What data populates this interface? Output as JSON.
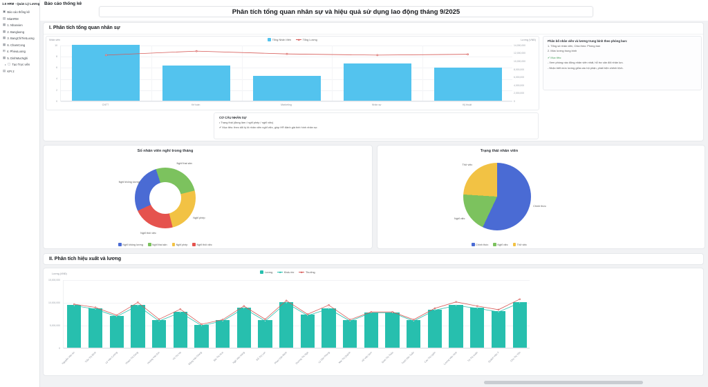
{
  "sidebar": {
    "title": "1.6 HRM - Quản Lý Lương",
    "items": [
      {
        "label": "Báo cáo thống kê",
        "icon": "folder-icon"
      },
      {
        "label": "MiaHRM",
        "icon": "doc-icon"
      },
      {
        "label": "1. Nhanvien",
        "icon": "table-icon"
      },
      {
        "label": "2. Bangluong",
        "icon": "table-icon"
      },
      {
        "label": "3. BangChiTietLuong",
        "icon": "table-icon"
      },
      {
        "label": "6. ChamCong",
        "icon": "table-icon"
      },
      {
        "label": "4. PhieuLuong",
        "icon": "grid-icon"
      },
      {
        "label": "5. DinhMucNghi",
        "icon": "table-icon"
      },
      {
        "label": "Tạo Trực viên",
        "icon": "file-icon",
        "indent": true
      },
      {
        "label": "KPI 2",
        "icon": "doc-icon"
      }
    ]
  },
  "header": {
    "page_title": "Báo cáo thống kê",
    "main_title": "Phân tích tổng quan nhân sự và hiệu quả sử dụng lao động tháng 9/2025"
  },
  "sections": {
    "s1_title": "I. Phân tích tổng quan nhân sự",
    "s2_title": "II. Phân tích hiệu xuất và lương"
  },
  "note_panel": {
    "title": "Phân bố nhân viên và lương trung bình theo phòng ban:",
    "lines": [
      "1. Tổng số nhân viên, Chia theo: Phòng ban",
      "2. Mức lương trung bình",
      "✔ Mục tiêu:",
      "- Xem phòng nào đông nhân viên nhất, hỗ trợ cân đối nhân lực.",
      "- Nhận biết mức lương giữa các bộ phận, phát hiện chênh lệch."
    ]
  },
  "cocau_panel": {
    "title": "CƠ CẤU NHÂN SỰ",
    "lines": [
      "• Trạng thái (đang làm / nghỉ phép / nghỉ việc)",
      "✔ Mục tiêu: theo dõi tỷ lệ nhân viên nghỉ việc, giúp HR đánh giá tình hình nhân sự."
    ]
  },
  "chart_data": [
    {
      "type": "bar",
      "title": "Tổng nhân viên và tổng lương theo phòng ban",
      "categories": [
        "CNTT",
        "Kế toán",
        "Marketing",
        "Nhân sự",
        "Kỹ thuật"
      ],
      "left_axis_label": "Nhân viên",
      "right_axis_label": "Lương (VNĐ)",
      "left_max": 10,
      "right_max": 14000000,
      "left_ticks": [
        "10",
        "8",
        "6",
        "4",
        "2",
        "0"
      ],
      "right_ticks": [
        "14,000,000",
        "12,000,000",
        "10,000,000",
        "8,000,000",
        "6,000,000",
        "4,000,000",
        "2,000,000",
        "0"
      ],
      "grid": true,
      "legend_position": "top",
      "series": [
        {
          "name": "Tổng Nhân Viên",
          "kind": "bar",
          "axis": "left",
          "color": "#53c3ee",
          "values": [
            10,
            6.3,
            4.4,
            6.7,
            5.9
          ]
        },
        {
          "name": "Tổng Lương",
          "kind": "line",
          "axis": "right",
          "color": "#d65a57",
          "values": [
            11600000,
            12600000,
            11900000,
            11600000,
            11800000
          ]
        }
      ]
    },
    {
      "type": "pie",
      "variant": "donut",
      "title": "Số nhân viên nghỉ trong tháng",
      "rotate": -115,
      "legend_position": "bottom",
      "slices": [
        {
          "label": "Nghỉ không lương",
          "value": 27,
          "color": "#4a6bd4"
        },
        {
          "label": "Nghỉ thai sản",
          "value": 26,
          "color": "#7cc25e"
        },
        {
          "label": "Nghỉ phép",
          "value": 25,
          "color": "#f2c244"
        },
        {
          "label": "Nghỉ thôi việc",
          "value": 22,
          "color": "#e5534e"
        }
      ]
    },
    {
      "type": "pie",
      "variant": "pie",
      "title": "Trạng thái nhân viên",
      "rotate": 0,
      "legend_position": "bottom",
      "slices": [
        {
          "label": "Chính thức",
          "value": 57,
          "color": "#4a6bd4"
        },
        {
          "label": "Nghỉ việc",
          "value": 19,
          "color": "#7cc25e"
        },
        {
          "label": "Thử việc",
          "value": 24,
          "color": "#f2c244"
        }
      ]
    },
    {
      "type": "bar",
      "title": "Lương, khấu trừ và thưởng theo nhân viên",
      "ylabel": "Lương (VNĐ)",
      "left_max": 15000000,
      "left_ticks": [
        "15,000,000",
        "10,000,000",
        "5,000,000",
        "0"
      ],
      "grid": true,
      "legend_position": "top",
      "categories": [
        "Nguyễn Văn An",
        "Trần Thị Bình",
        "Lê Văn Cường",
        "Phạm Thị Dung",
        "Hoàng Văn Em",
        "Vũ Thị Hà",
        "Đặng Văn Giang",
        "Bùi Thị Hoa",
        "Ngô Văn Hùng",
        "Đỗ Thị Lan",
        "Phan Văn Minh",
        "Dương Thị Nga",
        "Lý Văn Phong",
        "Mai Thị Quỳnh",
        "Hồ Văn Sơn",
        "Đinh Thị Thảo",
        "Trịnh Văn Tuấn",
        "Cao Thị Uyên",
        "Lương Văn Vinh",
        "Tạ Thị Xuân",
        "Quách Văn Ý",
        "Chu Thị Yến"
      ],
      "series": [
        {
          "name": "Lương",
          "kind": "bar",
          "axis": "left",
          "color": "#27bfae",
          "values": [
            9400000,
            8600000,
            7000000,
            9400000,
            6000000,
            7900000,
            5000000,
            6000000,
            8800000,
            6000000,
            10000000,
            7200000,
            8700000,
            6000000,
            7800000,
            7800000,
            6000000,
            8400000,
            9400000,
            8800000,
            8000000,
            10000000
          ]
        },
        {
          "name": "Khấu trừ",
          "kind": "line",
          "axis": "left",
          "color": "#27bfae",
          "values": [
            9400000,
            8600000,
            7000000,
            9400000,
            6000000,
            7900000,
            5000000,
            6000000,
            8800000,
            6000000,
            10000000,
            7200000,
            8700000,
            6000000,
            7800000,
            7800000,
            6000000,
            8400000,
            9400000,
            8800000,
            8000000,
            10000000
          ]
        },
        {
          "name": "Thưởng",
          "kind": "line",
          "axis": "left",
          "color": "#d65a57",
          "values": [
            9700000,
            9000000,
            7300000,
            10100000,
            6400000,
            8600000,
            5300000,
            6300000,
            9300000,
            6400000,
            10500000,
            7500000,
            9500000,
            6300000,
            8000000,
            8000000,
            6300000,
            8800000,
            10200000,
            9300000,
            8500000,
            10800000
          ]
        }
      ]
    }
  ]
}
